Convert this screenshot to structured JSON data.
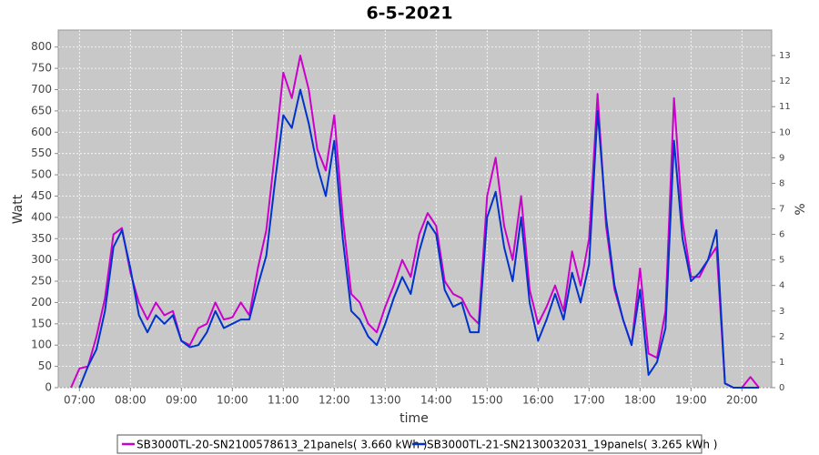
{
  "chart_data": {
    "type": "line",
    "title": "6-5-2021",
    "xlabel": "time",
    "ylabel": "Watt",
    "y2label": "%",
    "x": [
      "06:50",
      "07:00",
      "07:10",
      "07:20",
      "07:30",
      "07:40",
      "07:50",
      "08:00",
      "08:10",
      "08:20",
      "08:30",
      "08:40",
      "08:50",
      "09:00",
      "09:10",
      "09:20",
      "09:30",
      "09:40",
      "09:50",
      "10:00",
      "10:10",
      "10:20",
      "10:30",
      "10:40",
      "10:50",
      "11:00",
      "11:10",
      "11:20",
      "11:30",
      "11:40",
      "11:50",
      "12:00",
      "12:10",
      "12:20",
      "12:30",
      "12:40",
      "12:50",
      "13:00",
      "13:10",
      "13:20",
      "13:30",
      "13:40",
      "13:50",
      "14:00",
      "14:10",
      "14:20",
      "14:30",
      "14:40",
      "14:50",
      "15:00",
      "15:10",
      "15:20",
      "15:30",
      "15:40",
      "15:50",
      "16:00",
      "16:10",
      "16:20",
      "16:30",
      "16:40",
      "16:50",
      "17:00",
      "17:10",
      "17:20",
      "17:30",
      "17:40",
      "17:50",
      "18:00",
      "18:10",
      "18:20",
      "18:30",
      "18:40",
      "18:50",
      "19:00",
      "19:10",
      "19:20",
      "19:30",
      "19:40",
      "19:50",
      "20:00",
      "20:10",
      "20:20"
    ],
    "series": [
      {
        "name": "SB3000TL-20-SN2100578613_21panels( 3.660 kWh )",
        "color": "#cc00cc",
        "values": [
          0,
          45,
          50,
          120,
          210,
          360,
          375,
          270,
          200,
          160,
          200,
          170,
          180,
          110,
          100,
          140,
          150,
          200,
          160,
          165,
          200,
          170,
          280,
          370,
          550,
          740,
          680,
          780,
          700,
          560,
          510,
          640,
          400,
          220,
          200,
          150,
          130,
          190,
          240,
          300,
          260,
          360,
          410,
          380,
          250,
          220,
          210,
          170,
          150,
          450,
          540,
          380,
          300,
          450,
          230,
          150,
          190,
          240,
          180,
          320,
          240,
          350,
          690,
          380,
          230,
          160,
          100,
          280,
          80,
          70,
          180,
          680,
          390,
          260,
          260,
          300,
          330,
          10,
          0,
          0,
          25,
          0
        ]
      },
      {
        "name": "SB3000TL-21-SN2130032031_19panels( 3.265 kWh )",
        "color": "#0033cc",
        "values": [
          null,
          0,
          50,
          90,
          180,
          330,
          370,
          280,
          170,
          130,
          170,
          150,
          170,
          110,
          95,
          100,
          130,
          180,
          140,
          150,
          160,
          160,
          240,
          310,
          480,
          640,
          610,
          700,
          620,
          520,
          450,
          580,
          350,
          180,
          160,
          120,
          100,
          150,
          210,
          260,
          220,
          320,
          390,
          360,
          230,
          190,
          200,
          130,
          130,
          400,
          460,
          330,
          250,
          400,
          200,
          110,
          160,
          220,
          160,
          270,
          200,
          290,
          650,
          400,
          240,
          160,
          100,
          230,
          30,
          60,
          140,
          580,
          350,
          250,
          270,
          300,
          370,
          10,
          0,
          0,
          0,
          0
        ]
      }
    ],
    "xlim": [
      "06:35",
      "20:35"
    ],
    "xticks": [
      "07:00",
      "08:00",
      "09:00",
      "10:00",
      "11:00",
      "12:00",
      "13:00",
      "14:00",
      "15:00",
      "16:00",
      "17:00",
      "18:00",
      "19:00",
      "20:00"
    ],
    "ylim": [
      0,
      840
    ],
    "yticks": [
      0,
      50,
      100,
      150,
      200,
      250,
      300,
      350,
      400,
      450,
      500,
      550,
      600,
      650,
      700,
      750,
      800
    ],
    "y2lim": [
      0,
      14
    ],
    "y2ticks": [
      0,
      1,
      2,
      3,
      4,
      5,
      6,
      7,
      8,
      9,
      10,
      11,
      12,
      13
    ],
    "grid": true
  }
}
